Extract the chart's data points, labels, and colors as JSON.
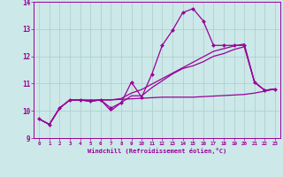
{
  "xlabel": "Windchill (Refroidissement éolien,°C)",
  "bg_color": "#cce8e8",
  "grid_color": "#aacccc",
  "line_color": "#990099",
  "xlim_min": -0.5,
  "xlim_max": 23.5,
  "ylim_min": 9.0,
  "ylim_max": 14.0,
  "xticks": [
    0,
    1,
    2,
    3,
    4,
    5,
    6,
    7,
    8,
    9,
    10,
    11,
    12,
    13,
    14,
    15,
    16,
    17,
    18,
    19,
    20,
    21,
    22,
    23
  ],
  "yticks": [
    9,
    10,
    11,
    12,
    13,
    14
  ],
  "main_x": [
    0,
    1,
    2,
    3,
    4,
    5,
    6,
    7,
    8,
    9,
    10,
    11,
    12,
    13,
    14,
    15,
    16,
    17,
    18,
    19,
    20,
    21,
    22,
    23
  ],
  "main_y": [
    9.7,
    9.5,
    10.1,
    10.4,
    10.4,
    10.35,
    10.4,
    10.1,
    10.3,
    11.05,
    10.5,
    11.35,
    12.4,
    12.95,
    13.6,
    13.75,
    13.3,
    12.4,
    12.4,
    12.4,
    12.4,
    11.05,
    10.75,
    10.8
  ],
  "flat_x": [
    0,
    1,
    2,
    3,
    4,
    5,
    6,
    7,
    8,
    9,
    10,
    11,
    12,
    13,
    14,
    15,
    16,
    17,
    18,
    19,
    20,
    21,
    22,
    23
  ],
  "flat_y": [
    9.7,
    9.5,
    10.1,
    10.4,
    10.4,
    10.4,
    10.4,
    10.4,
    10.42,
    10.44,
    10.46,
    10.48,
    10.5,
    10.5,
    10.5,
    10.5,
    10.52,
    10.54,
    10.56,
    10.58,
    10.6,
    10.65,
    10.72,
    10.8
  ],
  "mid_x": [
    0,
    1,
    2,
    3,
    4,
    5,
    6,
    7,
    8,
    9,
    10,
    11,
    12,
    13,
    14,
    15,
    16,
    17,
    18,
    19,
    20,
    21,
    22,
    23
  ],
  "mid_y": [
    9.7,
    9.5,
    10.1,
    10.4,
    10.4,
    10.35,
    10.4,
    10.0,
    10.3,
    10.55,
    10.55,
    10.85,
    11.1,
    11.35,
    11.55,
    11.65,
    11.8,
    12.0,
    12.1,
    12.25,
    12.35,
    11.05,
    10.75,
    10.8
  ],
  "trend_x": [
    0,
    1,
    2,
    3,
    4,
    5,
    6,
    7,
    8,
    9,
    10,
    11,
    12,
    13,
    14,
    15,
    16,
    17,
    18,
    19,
    20,
    21,
    22,
    23
  ],
  "trend_y": [
    9.7,
    9.5,
    10.1,
    10.4,
    10.4,
    10.35,
    10.4,
    10.4,
    10.45,
    10.65,
    10.78,
    10.98,
    11.18,
    11.38,
    11.58,
    11.78,
    11.98,
    12.18,
    12.28,
    12.38,
    12.45,
    11.05,
    10.75,
    10.8
  ]
}
